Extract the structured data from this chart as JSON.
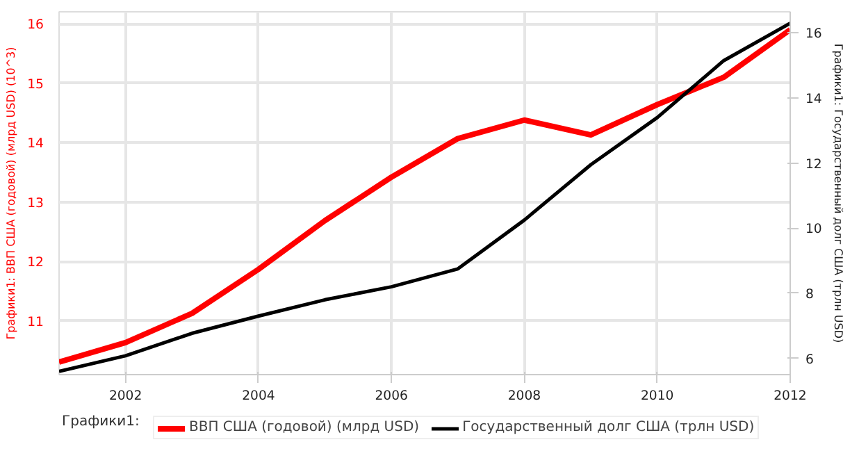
{
  "chart_data": {
    "type": "line",
    "ylabel": "Графики1: ВВП США (годовой) (млрд USD) (10^3)",
    "y2label": "Графики1: Государственный долг США (трлн USD)",
    "legend_title": "Графики1:",
    "x": [
      2001,
      2002,
      2003,
      2004,
      2005,
      2006,
      2007,
      2008,
      2009,
      2010,
      2011,
      2012
    ],
    "series": [
      {
        "name": "ВВП США (годовой) (млрд USD)",
        "color": "#ff0000",
        "values": [
          10.31,
          10.64,
          11.13,
          11.87,
          12.69,
          13.42,
          14.07,
          14.38,
          14.13,
          14.64,
          15.1,
          15.9
        ]
      },
      {
        "name": "Государственный долг США (трлн USD)",
        "color": "#000000",
        "axis": "y2",
        "values": [
          5.6,
          6.08,
          6.77,
          7.3,
          7.8,
          8.2,
          8.75,
          10.25,
          11.95,
          13.4,
          15.15,
          16.3
        ]
      }
    ],
    "xlim": [
      2001,
      2012
    ],
    "xticks": [
      2002,
      2004,
      2006,
      2008,
      2010,
      2012
    ],
    "ylim": [
      10.1,
      16.2
    ],
    "yticks": [
      11,
      12,
      13,
      14,
      15,
      16
    ],
    "y2lim": [
      5.5,
      16.65
    ],
    "y2ticks": [
      6,
      8,
      10,
      12,
      14,
      16
    ],
    "grid": true,
    "legend": "bottom",
    "marker": "none",
    "line_style": "solid"
  }
}
